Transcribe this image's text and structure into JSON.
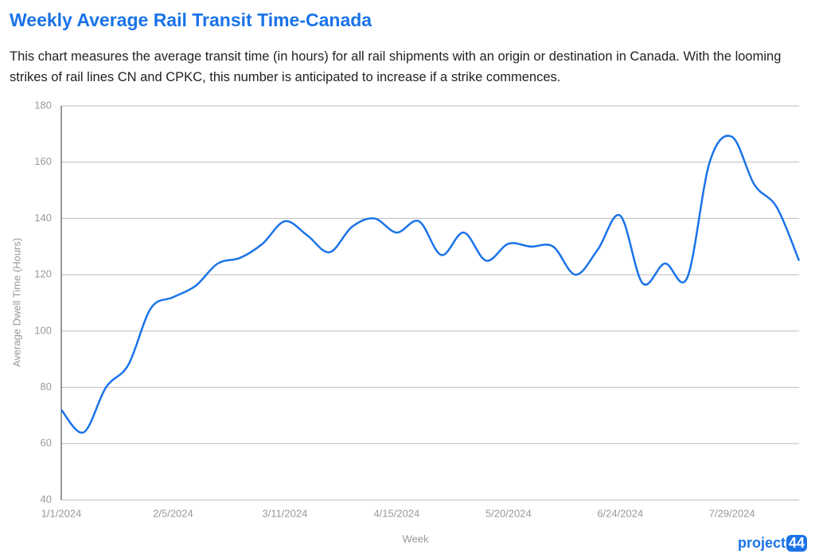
{
  "chart_data": {
    "type": "line",
    "title": "Weekly Average Rail Transit Time-Canada",
    "subtitle": "This chart measures the average transit time (in hours) for all rail shipments with an origin or destination in Canada. With the looming strikes of rail lines CN and CPKC, this number is anticipated to increase if a strike commences.",
    "x_label": "Week",
    "y_label": "Average Dwell Time (Hours)",
    "categories": [
      "1/1/2024",
      null,
      null,
      null,
      null,
      "2/5/2024",
      null,
      null,
      null,
      null,
      "3/11/2024",
      null,
      null,
      null,
      null,
      "4/15/2024",
      null,
      null,
      null,
      null,
      "5/20/2024",
      null,
      null,
      null,
      null,
      "6/24/2024",
      null,
      null,
      null,
      null,
      "7/29/2024",
      null,
      null,
      null
    ],
    "series": [
      {
        "color": "#1a73e8",
        "values": [
          72,
          64,
          80,
          88,
          108,
          112,
          116,
          124,
          126,
          131,
          139,
          134,
          128,
          137,
          140,
          135,
          139,
          127,
          135,
          125,
          131,
          130,
          130,
          120,
          129,
          141,
          117,
          124,
          119,
          160,
          169,
          152,
          144,
          125
        ]
      }
    ],
    "ylim": [
      40,
      180
    ],
    "yticks": [
      40,
      60,
      80,
      100,
      120,
      140,
      160,
      180
    ],
    "grid": true
  },
  "logo": {
    "text": "project",
    "badge": "44"
  }
}
